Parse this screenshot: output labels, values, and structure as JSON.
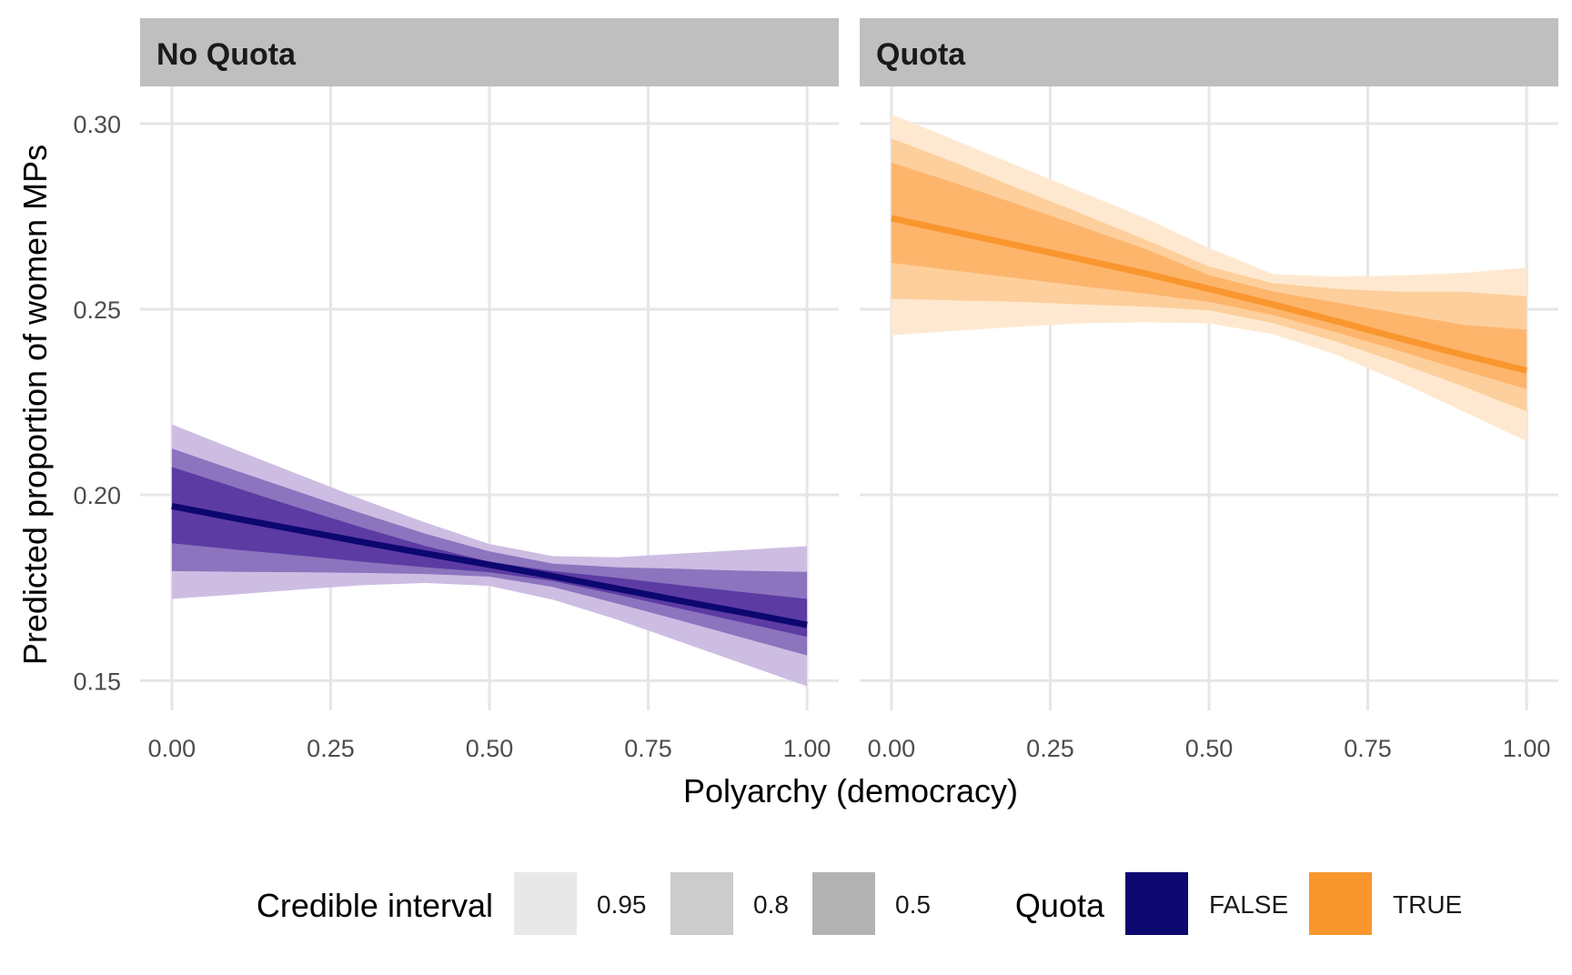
{
  "chart_data": {
    "type": "line",
    "xlabel": "Polyarchy (democracy)",
    "ylabel": "Predicted proportion of women MPs",
    "xlim": [
      -0.05,
      1.05
    ],
    "ylim": [
      0.142,
      0.31
    ],
    "x_ticks": [
      0,
      0.25,
      0.5,
      0.75,
      1
    ],
    "x_tick_labels": [
      "0.00",
      "0.25",
      "0.50",
      "0.75",
      "1.00"
    ],
    "y_ticks": [
      0.15,
      0.2,
      0.25,
      0.3
    ],
    "y_tick_labels": [
      "0.15",
      "0.20",
      "0.25",
      "0.30"
    ],
    "grid": true,
    "legend_position": "bottom",
    "colors": {
      "no_quota": {
        "line": "#0d0770",
        "band95": "#cdbde3",
        "band80": "#8d74be",
        "band50": "#5c3ba3"
      },
      "quota": {
        "line": "#f9962e",
        "band95": "#fee9d0",
        "band80": "#fdcf9c",
        "band50": "#fdb56c"
      },
      "strip_bg": "#bfbfbf",
      "grid": "#e6e6e6"
    },
    "panels": [
      {
        "strip": "No Quota",
        "key": "no_quota",
        "x": [
          0,
          0.1,
          0.2,
          0.3,
          0.4,
          0.5,
          0.6,
          0.7,
          0.8,
          0.9,
          1
        ],
        "median": [
          0.197,
          0.1937,
          0.1905,
          0.1873,
          0.1842,
          0.1812,
          0.1781,
          0.1748,
          0.1715,
          0.1683,
          0.165
        ],
        "ci95_lower": [
          0.172,
          0.1732,
          0.1745,
          0.1757,
          0.1763,
          0.1755,
          0.1718,
          0.1665,
          0.1605,
          0.1545,
          0.1485
        ],
        "ci95_upper": [
          0.219,
          0.2122,
          0.2055,
          0.1988,
          0.1925,
          0.1868,
          0.1835,
          0.1832,
          0.1842,
          0.1852,
          0.1862
        ],
        "ci80_lower": [
          0.1795,
          0.1793,
          0.1792,
          0.179,
          0.1787,
          0.178,
          0.1752,
          0.1708,
          0.1662,
          0.1615,
          0.1568
        ],
        "ci80_upper": [
          0.2125,
          0.2066,
          0.2008,
          0.195,
          0.1895,
          0.1848,
          0.1815,
          0.1805,
          0.1801,
          0.1796,
          0.1793
        ],
        "ci50_lower": [
          0.187,
          0.1853,
          0.1837,
          0.182,
          0.1805,
          0.1792,
          0.1768,
          0.1732,
          0.1694,
          0.1656,
          0.1618
        ],
        "ci50_upper": [
          0.2075,
          0.202,
          0.1965,
          0.1912,
          0.1862,
          0.182,
          0.1795,
          0.1777,
          0.1757,
          0.1738,
          0.172
        ]
      },
      {
        "strip": "Quota",
        "key": "quota",
        "x": [
          0,
          0.1,
          0.2,
          0.3,
          0.4,
          0.5,
          0.6,
          0.7,
          0.8,
          0.9,
          1
        ],
        "median": [
          0.2745,
          0.2708,
          0.2671,
          0.2634,
          0.2596,
          0.2555,
          0.2513,
          0.2468,
          0.2422,
          0.2377,
          0.2335
        ],
        "ci95_lower": [
          0.243,
          0.2442,
          0.2453,
          0.2462,
          0.2465,
          0.2462,
          0.2433,
          0.2378,
          0.2305,
          0.2225,
          0.2145
        ],
        "ci95_upper": [
          0.3025,
          0.2955,
          0.2885,
          0.2815,
          0.2745,
          0.2665,
          0.2595,
          0.2588,
          0.2591,
          0.2598,
          0.2612
        ],
        "ci80_lower": [
          0.2528,
          0.2524,
          0.252,
          0.2513,
          0.2507,
          0.2497,
          0.2463,
          0.2413,
          0.2355,
          0.2292,
          0.2225
        ],
        "ci80_upper": [
          0.296,
          0.2895,
          0.2825,
          0.2757,
          0.2687,
          0.2615,
          0.257,
          0.2555,
          0.2547,
          0.2547,
          0.2535
        ],
        "ci50_lower": [
          0.2625,
          0.2604,
          0.2583,
          0.2562,
          0.2542,
          0.252,
          0.2485,
          0.2438,
          0.2388,
          0.2335,
          0.2285
        ],
        "ci50_upper": [
          0.2895,
          0.284,
          0.2782,
          0.2722,
          0.2662,
          0.2592,
          0.2548,
          0.2518,
          0.2488,
          0.2458,
          0.2445
        ]
      }
    ],
    "legend": {
      "interval_title": "Credible interval",
      "interval_levels": [
        "0.95",
        "0.8",
        "0.5"
      ],
      "interval_swatch_colors": [
        "#e8e8e8",
        "#cccccc",
        "#b3b3b3"
      ],
      "quota_title": "Quota",
      "quota_levels": [
        "FALSE",
        "TRUE"
      ],
      "quota_swatch_colors": [
        "#0d0770",
        "#f9962e"
      ]
    }
  }
}
